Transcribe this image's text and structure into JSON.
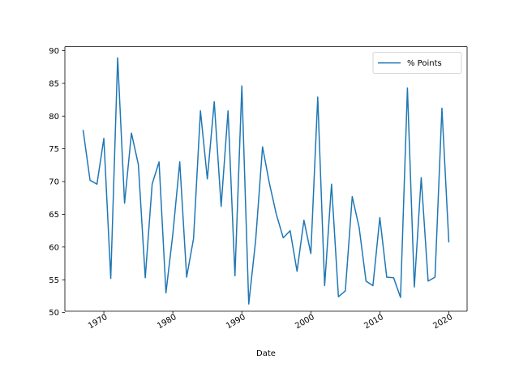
{
  "chart_data": {
    "type": "line",
    "title": "",
    "xlabel": "Date",
    "ylabel": "",
    "xlim": [
      1964.35,
      2022.65
    ],
    "ylim": [
      50.2,
      90.6
    ],
    "x_ticks": [
      1970,
      1980,
      1990,
      2000,
      2010,
      2020
    ],
    "x_tick_labels": [
      "1970",
      "1980",
      "1990",
      "2000",
      "2010",
      "2020"
    ],
    "y_ticks": [
      50,
      55,
      60,
      65,
      70,
      75,
      80,
      85,
      90
    ],
    "y_tick_labels": [
      "50",
      "55",
      "60",
      "65",
      "70",
      "75",
      "80",
      "85",
      "90"
    ],
    "grid": false,
    "legend_position": "top-right",
    "series": [
      {
        "name": "% Points",
        "color": "#1f77b4",
        "x": [
          1967,
          1968,
          1969,
          1970,
          1971,
          1972,
          1973,
          1974,
          1975,
          1976,
          1977,
          1978,
          1979,
          1980,
          1981,
          1982,
          1983,
          1984,
          1985,
          1986,
          1987,
          1988,
          1989,
          1990,
          1991,
          1992,
          1993,
          1994,
          1995,
          1996,
          1997,
          1998,
          1999,
          2000,
          2001,
          2002,
          2003,
          2004,
          2005,
          2006,
          2007,
          2008,
          2009,
          2010,
          2011,
          2012,
          2013,
          2014,
          2015,
          2016,
          2017,
          2018,
          2019,
          2020
        ],
        "y": [
          77.8,
          70.2,
          69.6,
          76.6,
          55.2,
          88.9,
          66.7,
          77.4,
          72.6,
          55.3,
          69.6,
          73.0,
          53.0,
          62.0,
          73.0,
          55.4,
          61.3,
          80.8,
          70.4,
          82.2,
          66.2,
          80.8,
          55.6,
          84.6,
          51.3,
          61.0,
          75.3,
          69.7,
          65.0,
          61.4,
          62.5,
          56.3,
          64.1,
          59.0,
          82.9,
          54.1,
          69.6,
          52.4,
          53.3,
          67.7,
          63.0,
          54.8,
          54.1,
          64.5,
          55.4,
          55.3,
          52.3,
          84.3,
          53.9,
          70.6,
          54.8,
          55.4,
          81.2,
          60.8
        ]
      }
    ]
  }
}
